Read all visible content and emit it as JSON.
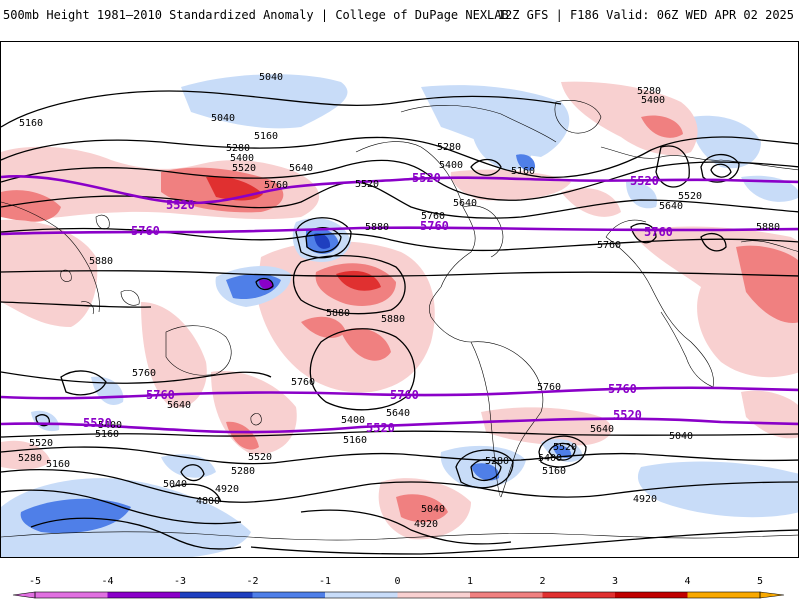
{
  "header": {
    "title_left": "500mb Height 1981–2010 Standardized Anomaly | College of DuPage NEXLAB",
    "title_right": "12Z GFS | F186 Valid: 06Z WED APR 02 2025"
  },
  "colors": {
    "neg5": "#e070e0",
    "neg4": "#8a00c8",
    "neg3": "#1f3fbf",
    "neg2": "#4f7fe8",
    "neg1": "#c8dcf8",
    "pos1": "#f8d0d0",
    "pos2": "#f08080",
    "pos3": "#e03030",
    "pos4": "#c00000",
    "pos5": "#f8a800",
    "purple_contour": "#8a00c8",
    "black_contour": "#000000",
    "coastline": "#000000"
  },
  "colorbar": {
    "ticks": [
      "-5",
      "-4",
      "-3",
      "-2",
      "-1",
      "0",
      "1",
      "2",
      "3",
      "4",
      "5"
    ],
    "bins": [
      {
        "from": -5,
        "to": -4,
        "color_key": "neg5"
      },
      {
        "from": -4,
        "to": -3,
        "color_key": "neg4"
      },
      {
        "from": -3,
        "to": -2,
        "color_key": "neg3"
      },
      {
        "from": -2,
        "to": -1,
        "color_key": "neg2"
      },
      {
        "from": -1,
        "to": 0,
        "color_key": "neg1"
      },
      {
        "from": 0,
        "to": 1,
        "color_key": "pos1"
      },
      {
        "from": 1,
        "to": 2,
        "color_key": "pos2"
      },
      {
        "from": 2,
        "to": 3,
        "color_key": "pos3"
      },
      {
        "from": 3,
        "to": 4,
        "color_key": "pos4"
      },
      {
        "from": 4,
        "to": 5,
        "color_key": "pos5"
      }
    ]
  },
  "contours": {
    "purple_labels": [
      "5520",
      "5760",
      "5520",
      "5760",
      "5520",
      "5760",
      "5760",
      "5520",
      "5520",
      "5760",
      "5520",
      "5520",
      "5760",
      "5520"
    ],
    "black_labels": [
      "5040",
      "5040",
      "5160",
      "5160",
      "5280",
      "5400",
      "5520",
      "5640",
      "5760",
      "5280",
      "5400",
      "5280",
      "5400",
      "5160",
      "5520",
      "5640",
      "5760",
      "5880",
      "5880",
      "5880",
      "5880",
      "5640",
      "5520",
      "5760",
      "5880",
      "5760",
      "5640",
      "5400",
      "5160",
      "5520",
      "5280",
      "5160",
      "5040",
      "4920",
      "4800",
      "5400",
      "5520",
      "5280",
      "5160",
      "5040",
      "4920",
      "5640",
      "5760",
      "5400",
      "5280",
      "5160",
      "5640",
      "5520",
      "5040",
      "4920",
      "5160",
      "5040",
      "5760",
      "5760",
      "5640",
      "5640"
    ]
  }
}
